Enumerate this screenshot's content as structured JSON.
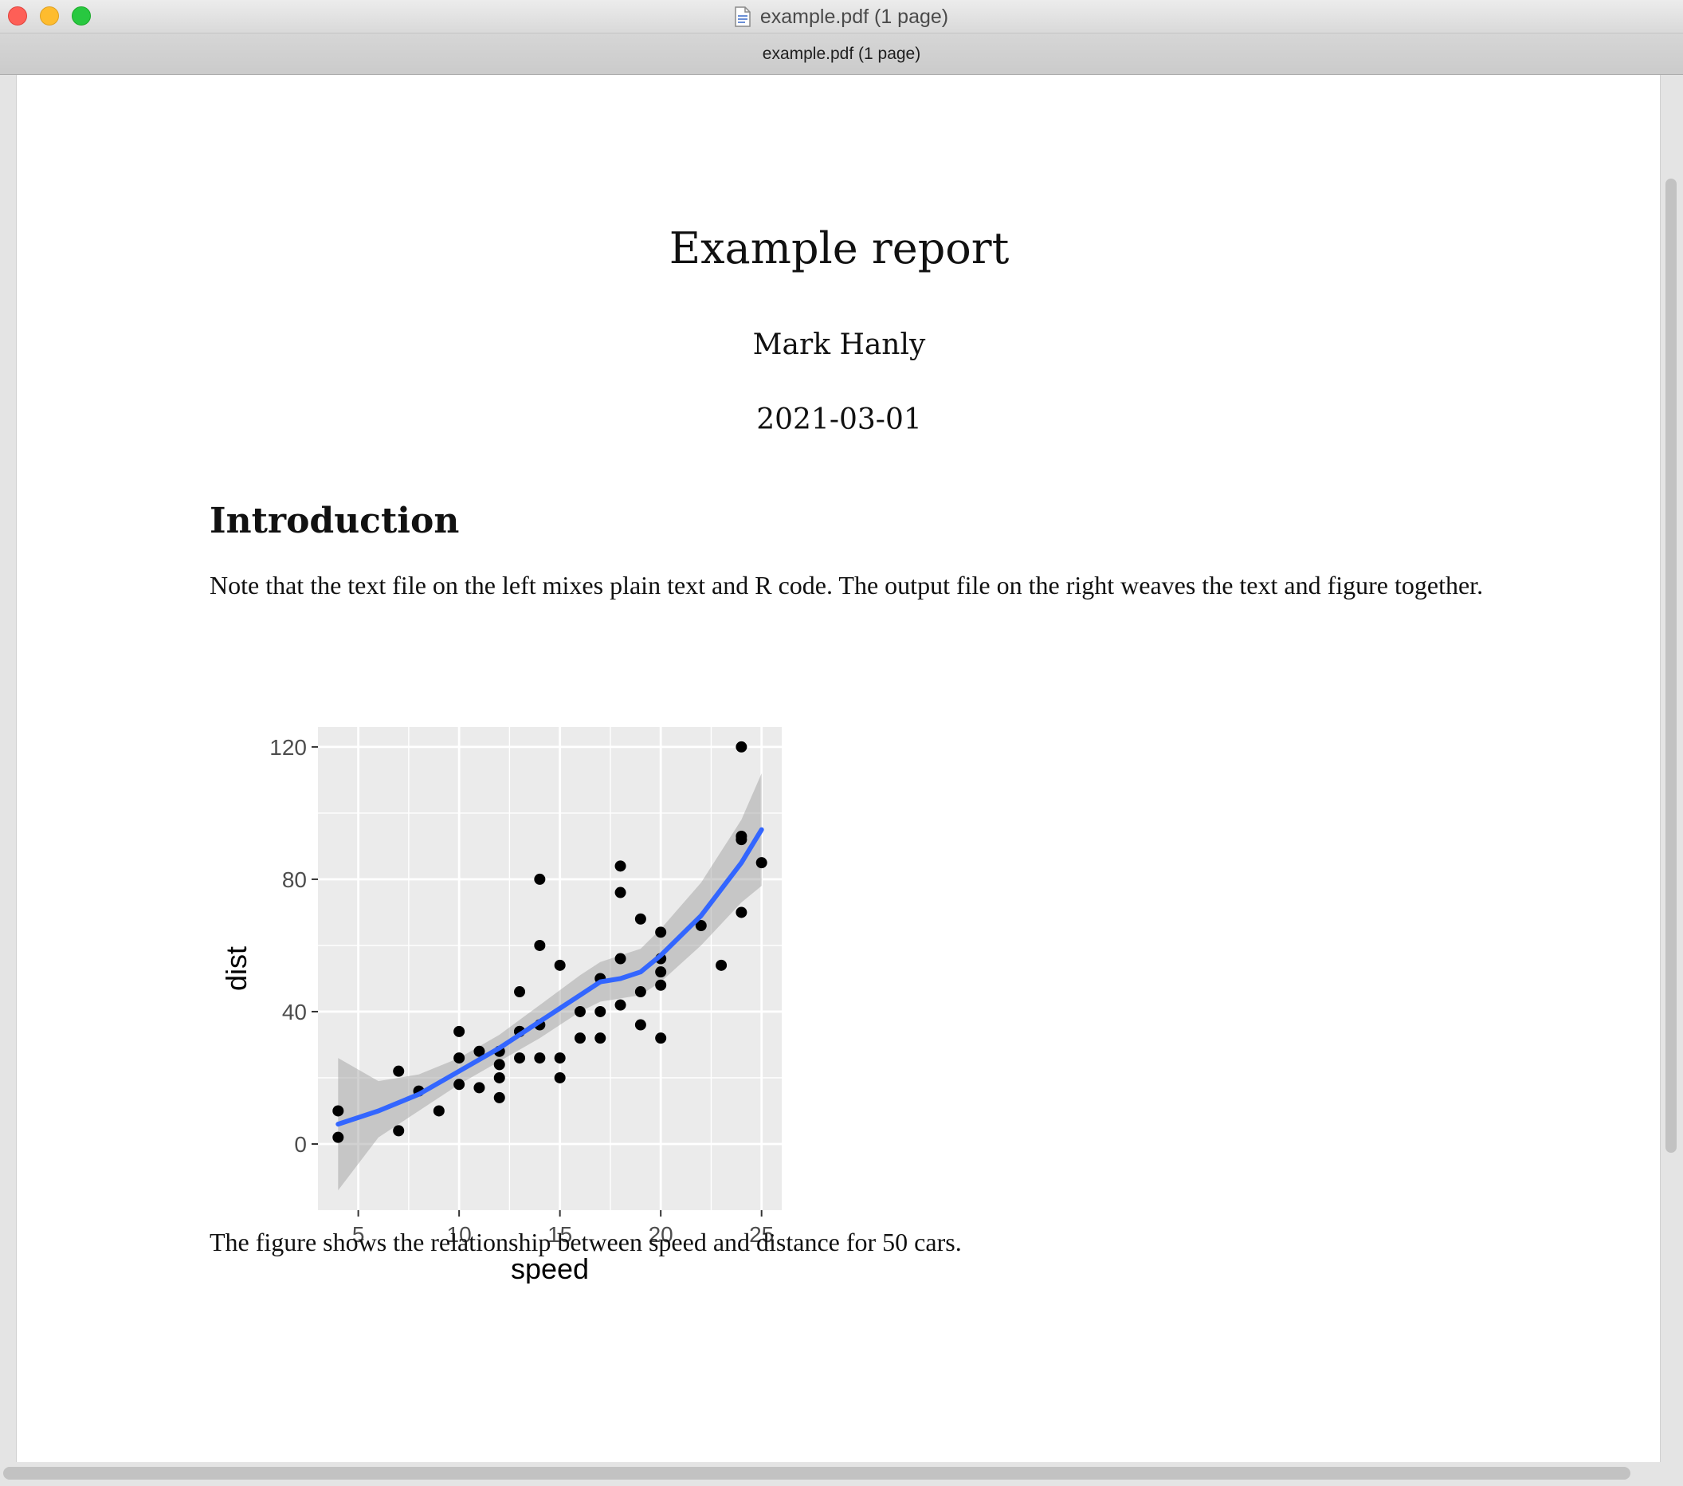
{
  "window": {
    "title": "example.pdf (1 page)",
    "tab_title": "example.pdf (1 page)"
  },
  "document": {
    "title": "Example report",
    "author": "Mark Hanly",
    "date": "2021-03-01",
    "section_heading": "Introduction",
    "paragraph_1": "Note that the text file on the left mixes plain text and R code. The output file on the right weaves the text and figure together.",
    "paragraph_2": "The figure shows the relationship between speed and distance for 50 cars."
  },
  "colors": {
    "panel_background": "#ebebeb",
    "grid": "#ffffff",
    "points": "#000000",
    "smooth_line": "#3366ff",
    "confidence_band": "#999999"
  },
  "chart_data": {
    "type": "scatter",
    "title": "",
    "xlabel": "speed",
    "ylabel": "dist",
    "xlim": [
      3,
      26
    ],
    "ylim": [
      -20,
      126
    ],
    "x_ticks": [
      5,
      10,
      15,
      20,
      25
    ],
    "y_ticks": [
      0,
      40,
      80,
      120
    ],
    "grid": true,
    "points": [
      {
        "x": 4,
        "y": 2
      },
      {
        "x": 4,
        "y": 10
      },
      {
        "x": 7,
        "y": 4
      },
      {
        "x": 7,
        "y": 22
      },
      {
        "x": 8,
        "y": 16
      },
      {
        "x": 9,
        "y": 10
      },
      {
        "x": 10,
        "y": 18
      },
      {
        "x": 10,
        "y": 26
      },
      {
        "x": 10,
        "y": 34
      },
      {
        "x": 11,
        "y": 17
      },
      {
        "x": 11,
        "y": 28
      },
      {
        "x": 12,
        "y": 14
      },
      {
        "x": 12,
        "y": 20
      },
      {
        "x": 12,
        "y": 24
      },
      {
        "x": 12,
        "y": 28
      },
      {
        "x": 13,
        "y": 26
      },
      {
        "x": 13,
        "y": 34
      },
      {
        "x": 13,
        "y": 34
      },
      {
        "x": 13,
        "y": 46
      },
      {
        "x": 14,
        "y": 26
      },
      {
        "x": 14,
        "y": 36
      },
      {
        "x": 14,
        "y": 60
      },
      {
        "x": 14,
        "y": 80
      },
      {
        "x": 15,
        "y": 20
      },
      {
        "x": 15,
        "y": 26
      },
      {
        "x": 15,
        "y": 54
      },
      {
        "x": 16,
        "y": 32
      },
      {
        "x": 16,
        "y": 40
      },
      {
        "x": 17,
        "y": 32
      },
      {
        "x": 17,
        "y": 40
      },
      {
        "x": 17,
        "y": 50
      },
      {
        "x": 18,
        "y": 42
      },
      {
        "x": 18,
        "y": 56
      },
      {
        "x": 18,
        "y": 76
      },
      {
        "x": 18,
        "y": 84
      },
      {
        "x": 19,
        "y": 36
      },
      {
        "x": 19,
        "y": 46
      },
      {
        "x": 19,
        "y": 68
      },
      {
        "x": 20,
        "y": 32
      },
      {
        "x": 20,
        "y": 48
      },
      {
        "x": 20,
        "y": 52
      },
      {
        "x": 20,
        "y": 56
      },
      {
        "x": 20,
        "y": 64
      },
      {
        "x": 22,
        "y": 66
      },
      {
        "x": 23,
        "y": 54
      },
      {
        "x": 24,
        "y": 70
      },
      {
        "x": 24,
        "y": 92
      },
      {
        "x": 24,
        "y": 93
      },
      {
        "x": 24,
        "y": 120
      },
      {
        "x": 25,
        "y": 85
      }
    ],
    "smooth": {
      "method": "loess",
      "x": [
        4,
        6,
        8,
        10,
        12,
        14,
        16,
        17,
        18,
        19,
        20,
        22,
        24,
        25
      ],
      "y": [
        6,
        10,
        15,
        22,
        29,
        37,
        45,
        49,
        50,
        52,
        57,
        69,
        85,
        95
      ],
      "lower": [
        -14,
        2,
        10,
        18,
        25,
        32,
        40,
        43,
        44,
        45,
        49,
        60,
        73,
        78
      ],
      "upper": [
        26,
        19,
        21,
        26,
        33,
        42,
        51,
        55,
        57,
        59,
        65,
        79,
        98,
        112
      ]
    }
  }
}
